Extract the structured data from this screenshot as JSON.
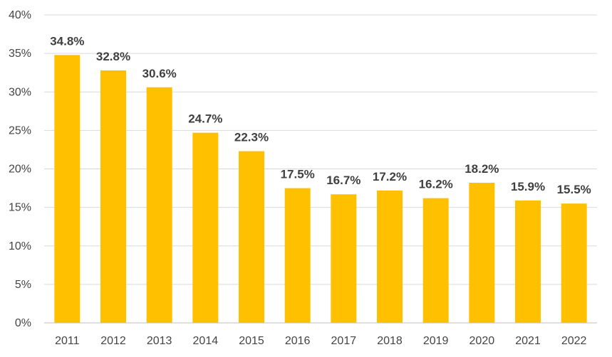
{
  "chart_data": {
    "type": "bar",
    "title": "",
    "xlabel": "",
    "ylabel": "",
    "categories": [
      "2011",
      "2012",
      "2013",
      "2014",
      "2015",
      "2016",
      "2017",
      "2018",
      "2019",
      "2020",
      "2021",
      "2022"
    ],
    "values": [
      34.8,
      32.8,
      30.6,
      24.7,
      22.3,
      17.5,
      16.7,
      17.2,
      16.2,
      18.2,
      15.9,
      15.5
    ],
    "value_labels": [
      "34.8%",
      "32.8%",
      "30.6%",
      "24.7%",
      "22.3%",
      "17.5%",
      "16.7%",
      "17.2%",
      "16.2%",
      "18.2%",
      "15.9%",
      "15.5%"
    ],
    "ylim": [
      0,
      40
    ],
    "y_ticks": [
      0,
      5,
      10,
      15,
      20,
      25,
      30,
      35,
      40
    ],
    "y_tick_labels": [
      "0%",
      "5%",
      "10%",
      "15%",
      "20%",
      "25%",
      "30%",
      "35%",
      "40%"
    ],
    "grid": true,
    "legend": "none",
    "colors": {
      "bar": "#FFC000",
      "grid": "#D9D9D9",
      "axis": "#BFBFBF",
      "tick_text": "#444444",
      "label_text": "#404040"
    }
  }
}
